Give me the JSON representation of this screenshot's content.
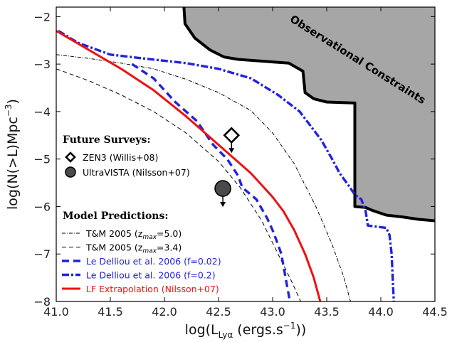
{
  "chart_data": {
    "type": "line",
    "xlabel": "log(L",
    "xlabel_sub": "Lyα",
    "xlabel_tail": " (ergs.s",
    "xlabel_sup": "−1",
    "xlabel_end": "))",
    "ylabel": "log(N(>L)Mpc",
    "ylabel_sup": "−3",
    "ylabel_end": ")",
    "xlim": [
      41.0,
      44.5
    ],
    "ylim": [
      -8.0,
      -1.8
    ],
    "xticks": [
      "41.0",
      "41.5",
      "42.0",
      "42.5",
      "43.0",
      "43.5",
      "44.0",
      "44.5"
    ],
    "yticks": [
      "−8",
      "−7",
      "−6",
      "−5",
      "−4",
      "−3",
      "−2"
    ],
    "region_label": "Observational Constraints",
    "region_color": "#a6a6a6",
    "region_boundary": [
      [
        42.18,
        -1.8
      ],
      [
        42.19,
        -2.15
      ],
      [
        42.28,
        -2.45
      ],
      [
        42.42,
        -2.7
      ],
      [
        42.55,
        -2.85
      ],
      [
        42.68,
        -2.9
      ],
      [
        43.15,
        -2.98
      ],
      [
        43.28,
        -3.15
      ],
      [
        43.3,
        -3.6
      ],
      [
        43.38,
        -3.73
      ],
      [
        43.5,
        -3.8
      ],
      [
        43.76,
        -3.82
      ],
      [
        43.76,
        -6.0
      ],
      [
        43.86,
        -6.02
      ],
      [
        43.92,
        -6.08
      ],
      [
        44.05,
        -6.18
      ],
      [
        44.2,
        -6.22
      ],
      [
        44.35,
        -6.27
      ],
      [
        44.5,
        -6.3
      ]
    ],
    "future_surveys_title": "Future Surveys:",
    "model_predictions_title": "Model Predictions:",
    "survey_points": [
      {
        "name": "ZEN3 (Willis+08)",
        "x": 42.62,
        "y": -4.5,
        "marker": "diamond",
        "upper_limit": true
      },
      {
        "name": "UltraVISTA (Nilsson+07)",
        "x": 42.54,
        "y": -5.62,
        "marker": "circle",
        "upper_limit": true
      }
    ],
    "series": [
      {
        "name": "T&M 2005 (z",
        "name_sub": "max",
        "name_tail": "=5.0)",
        "color": "#000000",
        "style": "dashdot-thin",
        "points": [
          [
            41.0,
            -2.8
          ],
          [
            41.3,
            -2.88
          ],
          [
            41.6,
            -2.98
          ],
          [
            41.9,
            -3.1
          ],
          [
            42.2,
            -3.32
          ],
          [
            42.5,
            -3.6
          ],
          [
            42.8,
            -3.98
          ],
          [
            43.0,
            -4.45
          ],
          [
            43.2,
            -5.1
          ],
          [
            43.4,
            -6.0
          ],
          [
            43.55,
            -6.8
          ],
          [
            43.66,
            -7.5
          ],
          [
            43.72,
            -8.0
          ]
        ]
      },
      {
        "name": "T&M 2005 (z",
        "name_sub": "max",
        "name_tail": "=3.4)",
        "color": "#000000",
        "style": "dash-thin",
        "points": [
          [
            41.0,
            -3.1
          ],
          [
            41.3,
            -3.35
          ],
          [
            41.6,
            -3.65
          ],
          [
            41.9,
            -4.0
          ],
          [
            42.2,
            -4.45
          ],
          [
            42.5,
            -5.05
          ],
          [
            42.7,
            -5.6
          ],
          [
            42.9,
            -6.3
          ],
          [
            43.05,
            -7.0
          ],
          [
            43.18,
            -7.6
          ],
          [
            43.26,
            -8.0
          ]
        ]
      },
      {
        "name": "Le Delliou et al. 2006 (f=0.02)",
        "name_sub": "",
        "name_tail": "",
        "color": "#2222dd",
        "style": "dash-thick",
        "points": [
          [
            41.7,
            -3.0
          ],
          [
            41.9,
            -3.3
          ],
          [
            42.1,
            -3.8
          ],
          [
            42.3,
            -4.2
          ],
          [
            42.45,
            -4.7
          ],
          [
            42.58,
            -5.0
          ],
          [
            42.68,
            -5.35
          ],
          [
            42.72,
            -5.6
          ],
          [
            42.85,
            -5.85
          ],
          [
            42.95,
            -6.25
          ],
          [
            43.0,
            -6.5
          ],
          [
            43.05,
            -6.8
          ],
          [
            43.08,
            -7.0
          ],
          [
            43.12,
            -7.5
          ],
          [
            43.16,
            -8.0
          ]
        ]
      },
      {
        "name": "Le Delliou et al. 2006 (f=0.2)",
        "name_sub": "",
        "name_tail": "",
        "color": "#2222dd",
        "style": "dashdot-thick",
        "points": [
          [
            41.02,
            -2.3
          ],
          [
            41.2,
            -2.55
          ],
          [
            41.5,
            -2.8
          ],
          [
            41.8,
            -2.88
          ],
          [
            42.2,
            -2.98
          ],
          [
            42.5,
            -3.1
          ],
          [
            42.8,
            -3.3
          ],
          [
            43.05,
            -3.65
          ],
          [
            43.25,
            -4.0
          ],
          [
            43.35,
            -4.3
          ],
          [
            43.45,
            -4.6
          ],
          [
            43.55,
            -5.0
          ],
          [
            43.62,
            -5.3
          ],
          [
            43.7,
            -5.55
          ],
          [
            43.76,
            -5.75
          ],
          [
            43.82,
            -5.85
          ],
          [
            43.86,
            -6.1
          ],
          [
            43.88,
            -6.4
          ],
          [
            44.05,
            -6.45
          ],
          [
            44.08,
            -6.6
          ],
          [
            44.1,
            -7.0
          ],
          [
            44.12,
            -8.0
          ]
        ]
      },
      {
        "name": "LF Extrapolation (Nilsson+07)",
        "name_sub": "",
        "name_tail": "",
        "color": "#ee1111",
        "style": "solid-thick",
        "points": [
          [
            41.0,
            -2.3
          ],
          [
            41.3,
            -2.7
          ],
          [
            41.6,
            -3.1
          ],
          [
            41.9,
            -3.55
          ],
          [
            42.2,
            -4.1
          ],
          [
            42.5,
            -4.7
          ],
          [
            42.8,
            -5.3
          ],
          [
            43.0,
            -5.8
          ],
          [
            43.1,
            -6.1
          ],
          [
            43.2,
            -6.5
          ],
          [
            43.3,
            -7.0
          ],
          [
            43.38,
            -7.5
          ],
          [
            43.44,
            -8.0
          ]
        ]
      }
    ]
  }
}
